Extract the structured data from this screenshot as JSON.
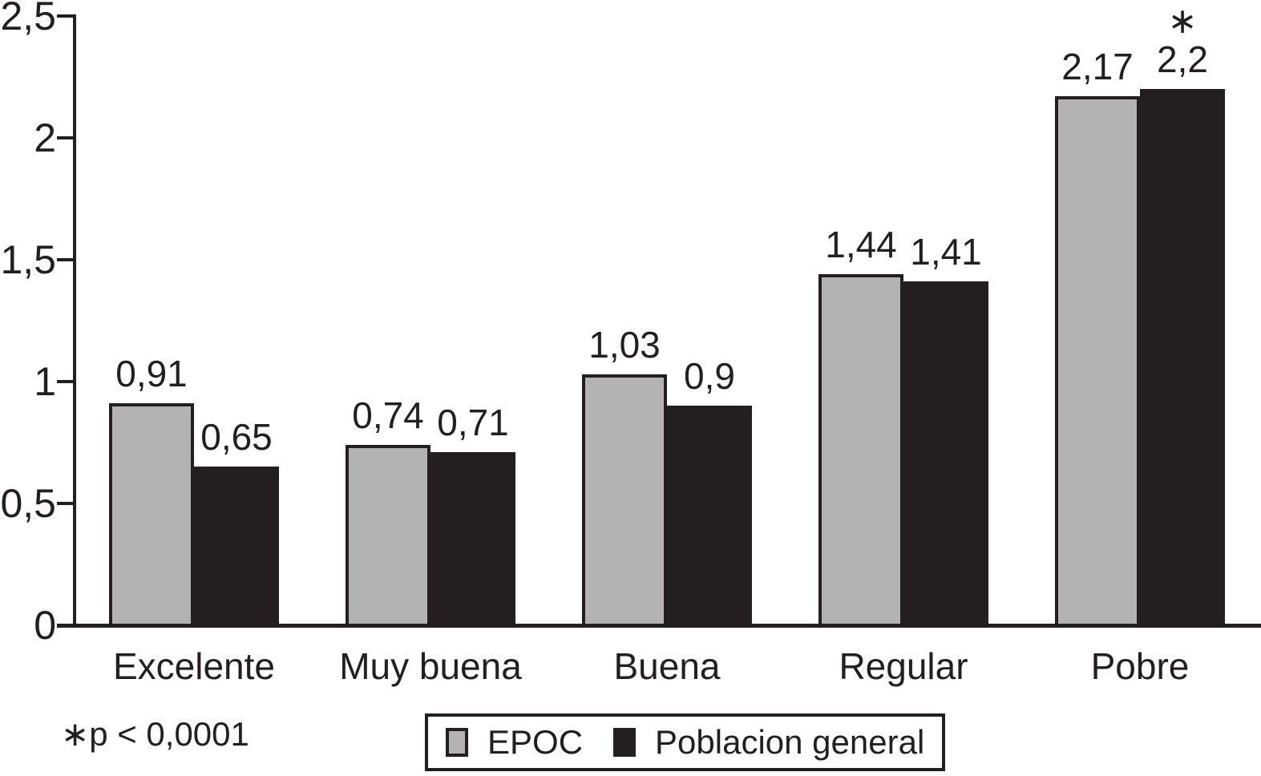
{
  "chart_data": {
    "type": "bar",
    "title": "",
    "xlabel": "",
    "ylabel": "",
    "grid": false,
    "categories": [
      "Excelente",
      "Muy buena",
      "Buena",
      "Regular",
      "Pobre"
    ],
    "series": [
      {
        "name": "EPOC",
        "color": "#b3b3b3",
        "values": [
          0.91,
          0.74,
          1.03,
          1.44,
          2.17
        ],
        "display_values": [
          "0,91",
          "0,74",
          "1,03",
          "1,44",
          "2,17"
        ]
      },
      {
        "name": "Poblacion general",
        "color": "#231f20",
        "values": [
          0.65,
          0.71,
          0.9,
          1.41,
          2.2
        ],
        "display_values": [
          "0,65",
          "0,71",
          "0,9",
          "1,41",
          "2,2"
        ]
      }
    ],
    "annotations": [
      {
        "category": "Pobre",
        "series": "Poblacion general",
        "symbol": "∗"
      }
    ],
    "y_axis": {
      "min": 0,
      "max": 2.5,
      "tick_step": 0.5,
      "tick_labels": [
        "0",
        "0,5",
        "1",
        "1,5",
        "2",
        "2,5"
      ]
    },
    "legend": {
      "position": "bottom-center",
      "entries": [
        {
          "label": "EPOC",
          "color": "#b3b3b3"
        },
        {
          "label": "Poblacion general",
          "color": "#231f20"
        }
      ]
    },
    "footnote": "∗p < 0,0001",
    "colors": {
      "ink": "#231f20",
      "background": "#ffffff"
    }
  }
}
